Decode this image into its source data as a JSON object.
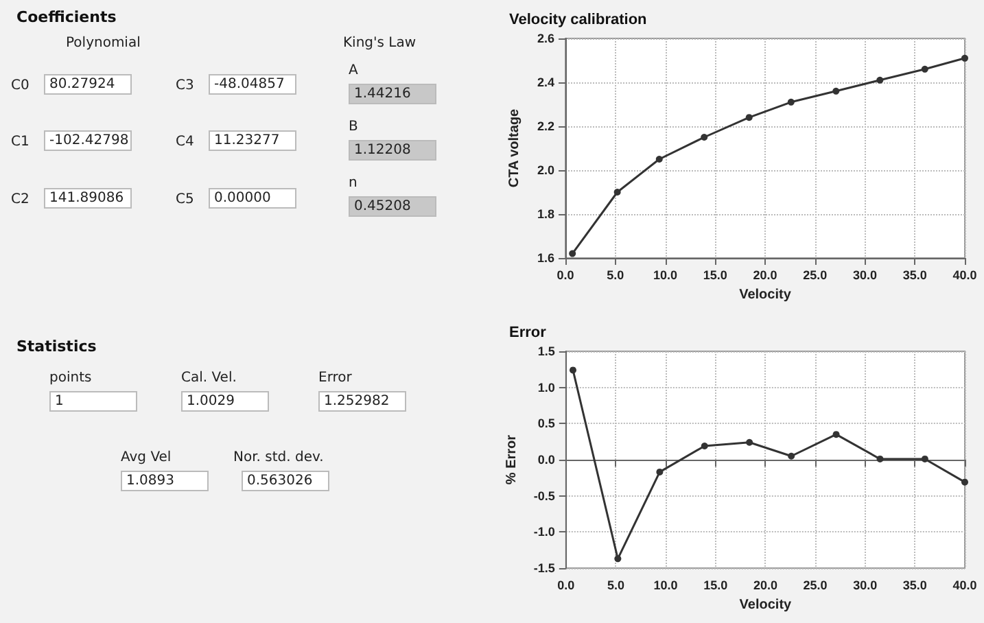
{
  "chart_data": [
    {
      "type": "other",
      "title": "Coefficients",
      "annotations": [
        "Polynomial",
        "King's Law",
        "C0",
        "80.27924",
        "C3",
        "-48.04857",
        "C1",
        "-102.42798",
        "C4",
        "11.23277",
        "C2",
        "141.89086",
        "C5",
        "0.00000",
        "A",
        "1.44216",
        "B",
        "1.12208",
        "n",
        "0.45208"
      ]
    },
    {
      "type": "other",
      "title": "Statistics",
      "annotations": [
        "points",
        "1",
        "Cal. Vel.",
        "1.0029",
        "Error",
        "1.252982",
        "Avg Vel",
        "1.0893",
        "Nor. std. dev.",
        "0.563026"
      ]
    },
    {
      "type": "line",
      "title": "Velocity calibration",
      "xlabel": "Velocity",
      "ylabel": "CTA voltage",
      "x": [
        0.7,
        5.2,
        9.4,
        13.9,
        18.4,
        22.6,
        27.1,
        31.5,
        36,
        40
      ],
      "series": [
        {
          "color": "#333333",
          "values": [
            1.62,
            1.9,
            2.05,
            2.15,
            2.24,
            2.31,
            2.36,
            2.41,
            2.46,
            2.51
          ]
        }
      ],
      "xlim": [
        0,
        40
      ],
      "xticks": [
        {
          "value": 0,
          "label": "0.0"
        },
        {
          "value": 5,
          "label": "5.0"
        },
        {
          "value": 10,
          "label": "10.0"
        },
        {
          "value": 15,
          "label": "15.0"
        },
        {
          "value": 20,
          "label": "20.0"
        },
        {
          "value": 25,
          "label": "25.0"
        },
        {
          "value": 30,
          "label": "30.0"
        },
        {
          "value": 35,
          "label": "35.0"
        },
        {
          "value": 40,
          "label": "40.0"
        }
      ],
      "ylim": [
        1.6,
        2.6
      ],
      "yticks": [
        1.6,
        1.8,
        {
          "value": 2,
          "label": "2.0"
        },
        2.2,
        2.4,
        2.6
      ],
      "grid": true,
      "marker": "circle",
      "line_style": "solid"
    },
    {
      "type": "line",
      "title": "Error",
      "xlabel": "Velocity",
      "ylabel": "% Error",
      "x": [
        0.7,
        5.2,
        9.4,
        13.9,
        18.4,
        22.6,
        27.1,
        31.5,
        36,
        40
      ],
      "series": [
        {
          "color": "#333333",
          "values": [
            1.24,
            -1.37,
            -0.17,
            0.19,
            0.24,
            0.05,
            0.35,
            0.01,
            0.01,
            -0.31
          ]
        }
      ],
      "xlim": [
        0,
        40
      ],
      "xticks": [
        {
          "value": 0,
          "label": "0.0"
        },
        {
          "value": 5,
          "label": "5.0"
        },
        {
          "value": 10,
          "label": "10.0"
        },
        {
          "value": 15,
          "label": "15.0"
        },
        {
          "value": 20,
          "label": "20.0"
        },
        {
          "value": 25,
          "label": "25.0"
        },
        {
          "value": 30,
          "label": "30.0"
        },
        {
          "value": 35,
          "label": "35.0"
        },
        {
          "value": 40,
          "label": "40.0"
        }
      ],
      "ylim": [
        -1.5,
        1.5
      ],
      "yticks": [
        -1.5,
        {
          "value": -1,
          "label": "-1.0"
        },
        -0.5,
        {
          "value": 0,
          "label": "0.0"
        },
        0.5,
        {
          "value": 1,
          "label": "1.0"
        },
        1.5
      ],
      "grid": true,
      "marker": "circle",
      "line_style": "solid"
    }
  ]
}
